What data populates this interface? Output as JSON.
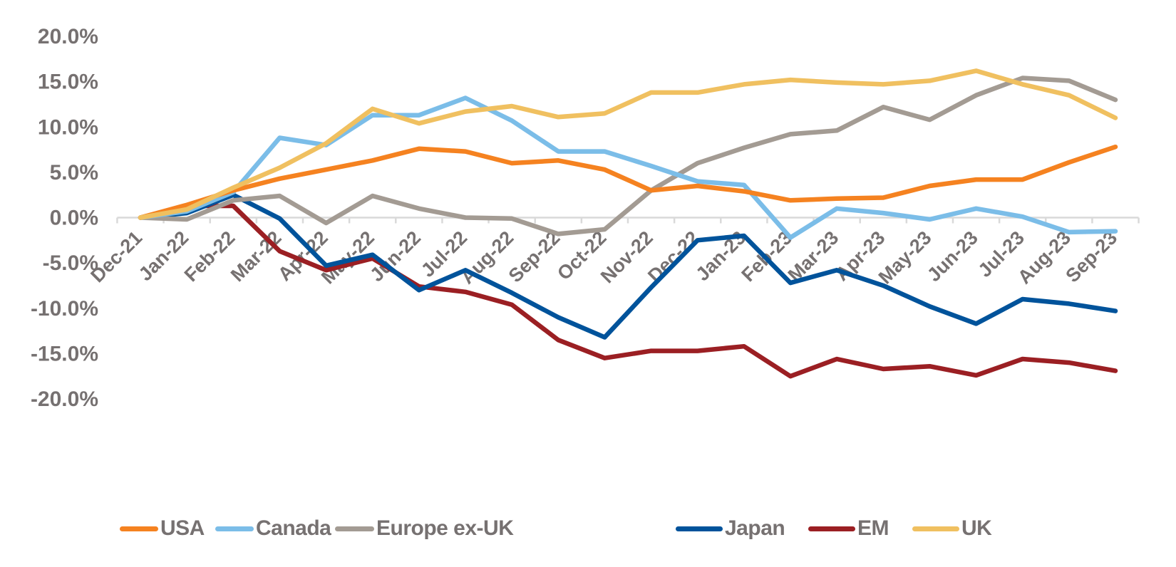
{
  "chart_data": {
    "type": "line",
    "title": "",
    "xlabel": "",
    "ylabel": "",
    "ylim": [
      -20,
      20
    ],
    "yticks": [
      20,
      15,
      10,
      5,
      0,
      -5,
      -10,
      -15,
      -20
    ],
    "ytick_labels": [
      "20.0%",
      "15.0%",
      "10.0%",
      "5.0%",
      "0.0%",
      "-5.0%",
      "-10.0%",
      "-15.0%",
      "-20.0%"
    ],
    "grid": false,
    "legend_position": "bottom",
    "categories": [
      "Dec-21",
      "Jan-22",
      "Feb-22",
      "Mar-22",
      "Apr-22",
      "May-22",
      "Jun-22",
      "Jul-22",
      "Aug-22",
      "Sep-22",
      "Oct-22",
      "Nov-22",
      "Dec-22",
      "Jan-23",
      "Feb-23",
      "Mar-23",
      "Apr-23",
      "May-23",
      "Jun-23",
      "Jul-23",
      "Aug-23",
      "Sep-23"
    ],
    "series": [
      {
        "name": "USA",
        "color": "#F58220",
        "values": [
          0,
          1.4,
          3.0,
          4.3,
          5.3,
          6.3,
          7.6,
          7.3,
          6.0,
          6.3,
          5.3,
          3.0,
          3.5,
          2.9,
          1.9,
          2.1,
          2.2,
          3.5,
          4.2,
          4.2,
          6.1,
          7.8
        ]
      },
      {
        "name": "Canada",
        "color": "#7BBDE8",
        "values": [
          0,
          0.7,
          2.8,
          8.8,
          8.0,
          11.3,
          11.3,
          13.2,
          10.7,
          7.3,
          7.3,
          5.7,
          4.0,
          3.6,
          -2.2,
          1.0,
          0.5,
          -0.2,
          1.0,
          0.1,
          -1.6,
          -1.5
        ]
      },
      {
        "name": "Europe ex-UK",
        "color": "#A39B93",
        "values": [
          0,
          -0.2,
          1.9,
          2.4,
          -0.6,
          2.4,
          1.0,
          0.0,
          -0.1,
          -1.8,
          -1.3,
          3.0,
          6.0,
          7.7,
          9.2,
          9.6,
          12.2,
          10.8,
          13.5,
          15.4,
          15.1,
          13.0
        ]
      },
      {
        "name": "Japan",
        "color": "#00539B",
        "values": [
          0,
          0.5,
          2.5,
          -0.1,
          -5.3,
          -4.1,
          -8.0,
          -5.8,
          -8.3,
          -11.0,
          -13.2,
          -7.7,
          -2.5,
          -2.0,
          -7.2,
          -5.8,
          -7.5,
          -9.8,
          -11.7,
          -9.0,
          -9.5,
          -10.3
        ]
      },
      {
        "name": "EM",
        "color": "#9B1F23",
        "values": [
          0,
          1.3,
          1.3,
          -3.7,
          -5.8,
          -4.5,
          -7.6,
          -8.2,
          -9.6,
          -13.5,
          -15.5,
          -14.7,
          -14.7,
          -14.2,
          -17.5,
          -15.6,
          -16.7,
          -16.4,
          -17.4,
          -15.6,
          -16.0,
          -16.9
        ]
      },
      {
        "name": "UK",
        "color": "#F0C060",
        "values": [
          0,
          0.9,
          3.3,
          5.5,
          8.2,
          12.0,
          10.4,
          11.7,
          12.3,
          11.1,
          11.5,
          13.8,
          13.8,
          14.7,
          15.2,
          14.9,
          14.7,
          15.1,
          16.2,
          14.7,
          13.5,
          11.0
        ]
      }
    ]
  }
}
